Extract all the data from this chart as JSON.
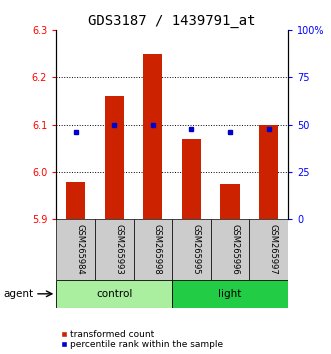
{
  "title": "GDS3187 / 1439791_at",
  "samples": [
    "GSM265984",
    "GSM265993",
    "GSM265998",
    "GSM265995",
    "GSM265996",
    "GSM265997"
  ],
  "groups": [
    "control",
    "control",
    "control",
    "light",
    "light",
    "light"
  ],
  "bar_values": [
    5.98,
    6.16,
    6.25,
    6.07,
    5.975,
    6.1
  ],
  "dot_values": [
    46,
    50,
    50,
    48,
    46,
    48
  ],
  "ylim_left": [
    5.9,
    6.3
  ],
  "ylim_right": [
    0,
    100
  ],
  "yticks_left": [
    5.9,
    6.0,
    6.1,
    6.2,
    6.3
  ],
  "yticks_right": [
    0,
    25,
    50,
    75,
    100
  ],
  "ytick_labels_right": [
    "0",
    "25",
    "50",
    "75",
    "100%"
  ],
  "grid_yticks": [
    6.0,
    6.1,
    6.2
  ],
  "bar_color": "#CC2200",
  "dot_color": "#0000CC",
  "title_fontsize": 10,
  "tick_fontsize": 7,
  "sample_fontsize": 6,
  "legend_fontsize": 6.5,
  "ctrl_color": "#AAEEA0",
  "light_color": "#22CC44",
  "sample_box_color": "#CCCCCC",
  "legend_items": [
    "transformed count",
    "percentile rank within the sample"
  ]
}
